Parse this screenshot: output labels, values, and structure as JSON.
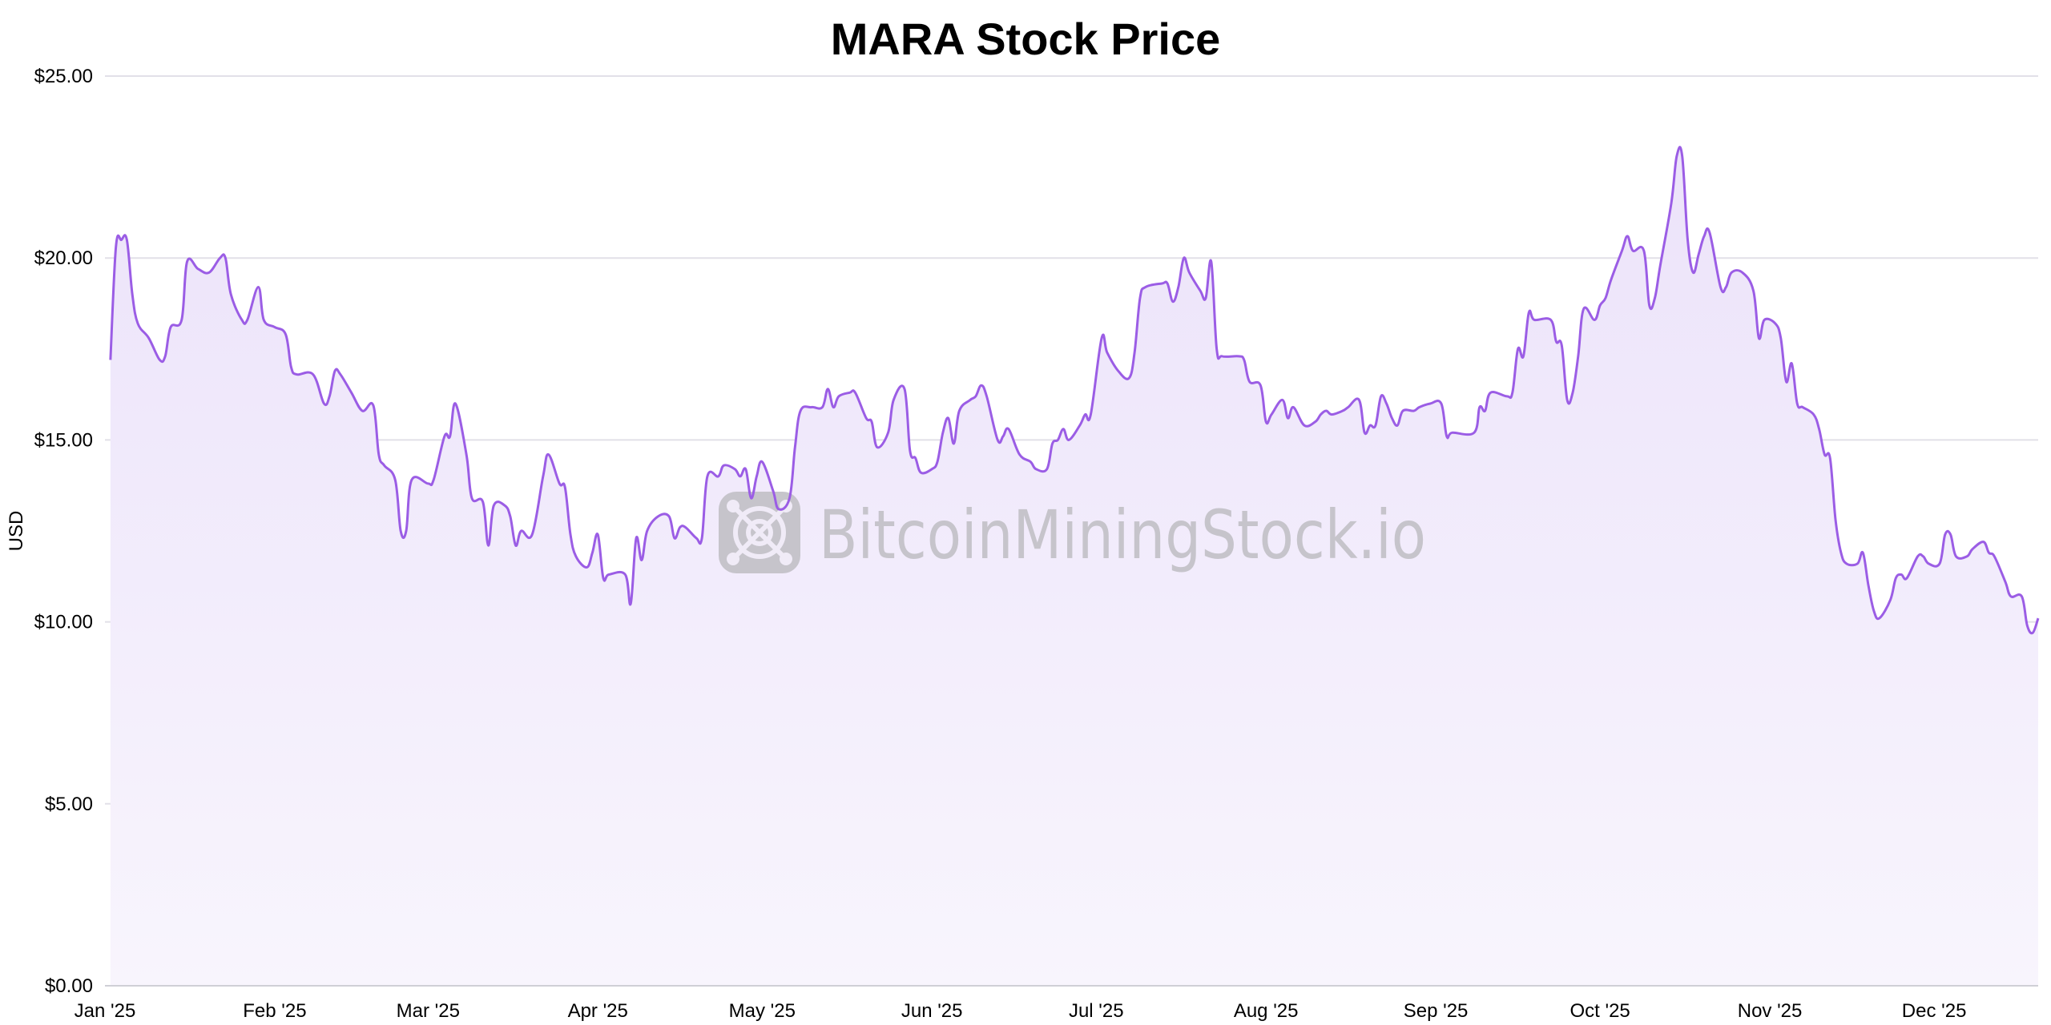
{
  "chart_data": {
    "type": "area",
    "title": "MARA Stock Price",
    "xlabel": "",
    "ylabel": "USD",
    "ylim": [
      0,
      25
    ],
    "xlim": [
      "2025-01-01",
      "2025-12-20"
    ],
    "grid": true,
    "legend": "none",
    "y_ticks": [
      "$0.00",
      "$5.00",
      "$10.00",
      "$15.00",
      "$20.00",
      "$25.00"
    ],
    "y_tick_values": [
      0,
      5,
      10,
      15,
      20,
      25
    ],
    "x_ticks": [
      "Jan '25",
      "Feb '25",
      "Mar '25",
      "Apr '25",
      "May '25",
      "Jun '25",
      "Jul '25",
      "Aug '25",
      "Sep '25",
      "Oct '25",
      "Nov '25",
      "Dec '25"
    ],
    "x_tick_dates": [
      "2025-01-01",
      "2025-02-01",
      "2025-03-01",
      "2025-04-01",
      "2025-05-01",
      "2025-06-01",
      "2025-07-01",
      "2025-08-01",
      "2025-09-01",
      "2025-10-01",
      "2025-11-01",
      "2025-12-01"
    ],
    "line_color": "#9b5de5",
    "fill_color_top": "#ece3fa",
    "fill_color_bottom": "#f8f5fd",
    "watermark": "BitcoinMiningStock.io",
    "series": [
      {
        "x": [
          "2025-01-02",
          "2025-01-03",
          "2025-01-04",
          "2025-01-05",
          "2025-01-06",
          "2025-01-07",
          "2025-01-09",
          "2025-01-11",
          "2025-01-12",
          "2025-01-13",
          "2025-01-15",
          "2025-01-16",
          "2025-01-18",
          "2025-01-20",
          "2025-01-22",
          "2025-01-23",
          "2025-01-24",
          "2025-01-26",
          "2025-01-27",
          "2025-01-29",
          "2025-01-30",
          "2025-02-01",
          "2025-02-03",
          "2025-02-04",
          "2025-02-05",
          "2025-02-08",
          "2025-02-10",
          "2025-02-11",
          "2025-02-12",
          "2025-02-13",
          "2025-02-15",
          "2025-02-17",
          "2025-02-19",
          "2025-02-20",
          "2025-02-21",
          "2025-02-23",
          "2025-02-24",
          "2025-02-25",
          "2025-02-26",
          "2025-03-01",
          "2025-03-02",
          "2025-03-04",
          "2025-03-05",
          "2025-03-06",
          "2025-03-08",
          "2025-03-09",
          "2025-03-11",
          "2025-03-12",
          "2025-03-13",
          "2025-03-15",
          "2025-03-16",
          "2025-03-17",
          "2025-03-18",
          "2025-03-20",
          "2025-03-22",
          "2025-03-23",
          "2025-03-25",
          "2025-03-26",
          "2025-03-27",
          "2025-03-28",
          "2025-03-30",
          "2025-03-31",
          "2025-04-01",
          "2025-04-02",
          "2025-04-03",
          "2025-04-06",
          "2025-04-07",
          "2025-04-08",
          "2025-04-09",
          "2025-04-10",
          "2025-04-12",
          "2025-04-14",
          "2025-04-15",
          "2025-04-16",
          "2025-04-17",
          "2025-04-19",
          "2025-04-20",
          "2025-04-21",
          "2025-04-23",
          "2025-04-24",
          "2025-04-26",
          "2025-04-27",
          "2025-04-28",
          "2025-04-29",
          "2025-04-30",
          "2025-05-01",
          "2025-05-03",
          "2025-05-04",
          "2025-05-06",
          "2025-05-07",
          "2025-05-08",
          "2025-05-10",
          "2025-05-12",
          "2025-05-13",
          "2025-05-14",
          "2025-05-15",
          "2025-05-17",
          "2025-05-18",
          "2025-05-20",
          "2025-05-21",
          "2025-05-22",
          "2025-05-24",
          "2025-05-25",
          "2025-05-27",
          "2025-05-28",
          "2025-05-29",
          "2025-05-30",
          "2025-06-01",
          "2025-06-02",
          "2025-06-03",
          "2025-06-04",
          "2025-06-05",
          "2025-06-06",
          "2025-06-08",
          "2025-06-09",
          "2025-06-10",
          "2025-06-11",
          "2025-06-13",
          "2025-06-14",
          "2025-06-15",
          "2025-06-17",
          "2025-06-19",
          "2025-06-20",
          "2025-06-22",
          "2025-06-23",
          "2025-06-24",
          "2025-06-25",
          "2025-06-26",
          "2025-06-28",
          "2025-06-29",
          "2025-06-30",
          "2025-07-02",
          "2025-07-03",
          "2025-07-05",
          "2025-07-07",
          "2025-07-08",
          "2025-07-09",
          "2025-07-10",
          "2025-07-13",
          "2025-07-14",
          "2025-07-15",
          "2025-07-16",
          "2025-07-17",
          "2025-07-18",
          "2025-07-20",
          "2025-07-21",
          "2025-07-22",
          "2025-07-23",
          "2025-07-24",
          "2025-07-27",
          "2025-07-28",
          "2025-07-29",
          "2025-07-31",
          "2025-08-01",
          "2025-08-02",
          "2025-08-04",
          "2025-08-05",
          "2025-08-06",
          "2025-08-08",
          "2025-08-10",
          "2025-08-11",
          "2025-08-12",
          "2025-08-13",
          "2025-08-15",
          "2025-08-16",
          "2025-08-18",
          "2025-08-19",
          "2025-08-20",
          "2025-08-21",
          "2025-08-22",
          "2025-08-23",
          "2025-08-24",
          "2025-08-25",
          "2025-08-26",
          "2025-08-28",
          "2025-08-29",
          "2025-08-31",
          "2025-09-02",
          "2025-09-03",
          "2025-09-04",
          "2025-09-08",
          "2025-09-09",
          "2025-09-10",
          "2025-09-11",
          "2025-09-14",
          "2025-09-15",
          "2025-09-16",
          "2025-09-17",
          "2025-09-18",
          "2025-09-19",
          "2025-09-22",
          "2025-09-23",
          "2025-09-24",
          "2025-09-25",
          "2025-09-26",
          "2025-09-27",
          "2025-09-28",
          "2025-09-30",
          "2025-10-01",
          "2025-10-02",
          "2025-10-03",
          "2025-10-05",
          "2025-10-06",
          "2025-10-07",
          "2025-10-09",
          "2025-10-10",
          "2025-10-11",
          "2025-10-12",
          "2025-10-14",
          "2025-10-15",
          "2025-10-16",
          "2025-10-17",
          "2025-10-18",
          "2025-10-19",
          "2025-10-20",
          "2025-10-21",
          "2025-10-23",
          "2025-10-24",
          "2025-10-25",
          "2025-10-27",
          "2025-10-29",
          "2025-10-30",
          "2025-10-31",
          "2025-11-02",
          "2025-11-03",
          "2025-11-04",
          "2025-11-05",
          "2025-11-06",
          "2025-11-07",
          "2025-11-09",
          "2025-11-10",
          "2025-11-11",
          "2025-11-12",
          "2025-11-13",
          "2025-11-14",
          "2025-11-15",
          "2025-11-17",
          "2025-11-18",
          "2025-11-19",
          "2025-11-20",
          "2025-11-21",
          "2025-11-23",
          "2025-11-24",
          "2025-11-25",
          "2025-11-26",
          "2025-11-28",
          "2025-11-29",
          "2025-11-30",
          "2025-12-02",
          "2025-12-03",
          "2025-12-04",
          "2025-12-05",
          "2025-12-07",
          "2025-12-08",
          "2025-12-10",
          "2025-12-11",
          "2025-12-12",
          "2025-12-14",
          "2025-12-15",
          "2025-12-17",
          "2025-12-18",
          "2025-12-19",
          "2025-12-20"
        ],
        "values": [
          17.2,
          20.3,
          20.5,
          20.5,
          19.0,
          18.2,
          17.8,
          17.2,
          17.3,
          18.1,
          18.3,
          19.9,
          19.7,
          19.6,
          20.0,
          20.0,
          19.0,
          18.3,
          18.3,
          19.2,
          18.3,
          18.1,
          17.9,
          17.0,
          16.8,
          16.8,
          16.0,
          16.2,
          16.9,
          16.8,
          16.3,
          15.8,
          15.95,
          14.6,
          14.3,
          13.9,
          12.5,
          12.5,
          13.9,
          13.8,
          13.9,
          15.1,
          15.1,
          16.0,
          14.6,
          13.4,
          13.3,
          12.1,
          13.2,
          13.2,
          12.9,
          12.1,
          12.5,
          12.4,
          14.0,
          14.6,
          13.8,
          13.7,
          12.4,
          11.8,
          11.5,
          11.9,
          12.4,
          11.2,
          11.3,
          11.3,
          10.5,
          12.3,
          11.7,
          12.5,
          12.9,
          12.9,
          12.3,
          12.6,
          12.6,
          12.3,
          12.3,
          14.0,
          14.0,
          14.3,
          14.2,
          14.0,
          14.2,
          13.4,
          14.0,
          14.4,
          13.6,
          13.1,
          13.4,
          14.8,
          15.8,
          15.9,
          15.9,
          16.4,
          15.9,
          16.2,
          16.3,
          16.3,
          15.6,
          15.5,
          14.8,
          15.2,
          16.1,
          16.4,
          14.7,
          14.5,
          14.1,
          14.2,
          14.4,
          15.2,
          15.6,
          14.9,
          15.8,
          16.1,
          16.2,
          16.5,
          16.2,
          15.0,
          15.1,
          15.3,
          14.6,
          14.4,
          14.2,
          14.2,
          14.9,
          15.0,
          15.3,
          15.0,
          15.4,
          15.7,
          15.7,
          17.8,
          17.4,
          16.9,
          16.7,
          17.4,
          18.9,
          19.2,
          19.3,
          19.3,
          18.8,
          19.2,
          20.0,
          19.6,
          19.1,
          18.9,
          19.9,
          17.5,
          17.3,
          17.3,
          17.2,
          16.6,
          16.5,
          15.5,
          15.7,
          16.1,
          15.6,
          15.9,
          15.4,
          15.5,
          15.7,
          15.8,
          15.7,
          15.8,
          15.9,
          16.1,
          15.2,
          15.4,
          15.4,
          16.2,
          16.0,
          15.6,
          15.4,
          15.8,
          15.8,
          15.9,
          16.0,
          16.0,
          15.1,
          15.2,
          15.2,
          15.9,
          15.8,
          16.3,
          16.2,
          16.3,
          17.5,
          17.3,
          18.5,
          18.3,
          18.3,
          17.7,
          17.6,
          16.1,
          16.3,
          17.3,
          18.6,
          18.3,
          18.7,
          18.9,
          19.4,
          20.2,
          20.6,
          20.2,
          20.2,
          18.7,
          18.9,
          19.8,
          21.5,
          22.8,
          22.8,
          20.5,
          19.6,
          20.1,
          20.6,
          20.7,
          19.2,
          19.2,
          19.6,
          19.6,
          19.1,
          17.8,
          18.3,
          18.2,
          17.8,
          16.6,
          17.1,
          16.0,
          15.9,
          15.7,
          15.3,
          14.6,
          14.5,
          12.8,
          11.9,
          11.6,
          11.6,
          11.9,
          11.0,
          10.3,
          10.1,
          10.6,
          11.2,
          11.3,
          11.2,
          11.8,
          11.8,
          11.6,
          11.6,
          12.4,
          12.4,
          11.8,
          11.8,
          12.0,
          12.2,
          11.9,
          11.8,
          11.1,
          10.7,
          10.7,
          9.9,
          9.7,
          10.1
        ]
      }
    ]
  }
}
